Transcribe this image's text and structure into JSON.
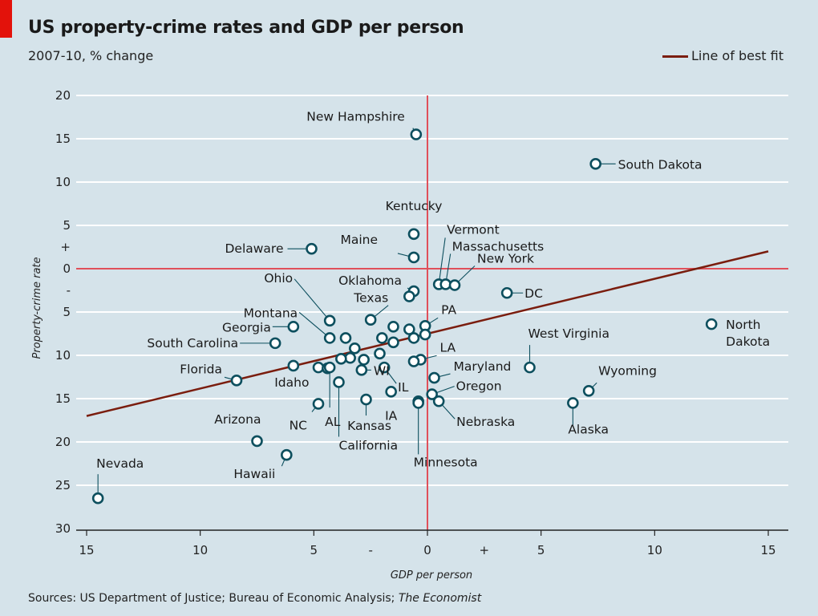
{
  "header": {
    "title": "US property-crime rates and GDP per person",
    "subtitle": "2007-10, % change"
  },
  "legend": {
    "label": "Line of best fit",
    "color": "#7a1d0e"
  },
  "footer": {
    "source_prefix": "Sources: US Department of Justice; Bureau of Economic Analysis; ",
    "source_italic": "The Economist"
  },
  "colors": {
    "background": "#d5e3ea",
    "accent_red": "#e3120b",
    "zero_line": "#e0505a",
    "point_stroke": "#0d4f5e",
    "fit_line": "#7a1d0e"
  },
  "chart_data": {
    "type": "scatter",
    "title": "US property-crime rates and GDP per person",
    "subtitle": "2007-10, % change",
    "xlabel": "GDP per person",
    "ylabel": "Property-crime rate",
    "xlim": [
      -15,
      15
    ],
    "ylim": [
      -20,
      30
    ],
    "y_inverted": true,
    "grid": "horizontal",
    "legend_position": "top-right",
    "x_ticks": [
      {
        "v": -15,
        "label": "15"
      },
      {
        "v": -10,
        "label": "10"
      },
      {
        "v": -5,
        "label": "5"
      },
      {
        "v": -2.5,
        "label": "-"
      },
      {
        "v": 0,
        "label": "0"
      },
      {
        "v": 2.5,
        "label": "+"
      },
      {
        "v": 5,
        "label": "5"
      },
      {
        "v": 10,
        "label": "10"
      },
      {
        "v": 15,
        "label": "15"
      }
    ],
    "y_ticks": [
      {
        "v": -20,
        "label": "20"
      },
      {
        "v": -15,
        "label": "15"
      },
      {
        "v": -10,
        "label": "10"
      },
      {
        "v": -5,
        "label": "5"
      },
      {
        "v": -2.5,
        "label": "+"
      },
      {
        "v": 0,
        "label": "0"
      },
      {
        "v": 2.5,
        "label": "-"
      },
      {
        "v": 5,
        "label": "5"
      },
      {
        "v": 10,
        "label": "10"
      },
      {
        "v": 15,
        "label": "15"
      },
      {
        "v": 20,
        "label": "20"
      },
      {
        "v": 25,
        "label": "25"
      },
      {
        "v": 30,
        "label": "30"
      }
    ],
    "best_fit": {
      "x": [
        -15,
        15
      ],
      "y": [
        17,
        -2
      ]
    },
    "points": [
      {
        "label": "New Hampshire",
        "x": -0.5,
        "y": -15.5
      },
      {
        "label": "South Dakota",
        "x": 7.4,
        "y": -12.1
      },
      {
        "label": "Kentucky",
        "x": -0.6,
        "y": -4.0
      },
      {
        "label": "Delaware",
        "x": -5.1,
        "y": -2.3
      },
      {
        "label": "Maine",
        "x": -0.6,
        "y": -1.3
      },
      {
        "label": "Vermont",
        "x": 0.5,
        "y": 1.8
      },
      {
        "label": "Massachusetts",
        "x": 0.8,
        "y": 1.8
      },
      {
        "label": "New York",
        "x": 1.2,
        "y": 1.9
      },
      {
        "label": "DC",
        "x": 3.5,
        "y": 2.8
      },
      {
        "label": "Oklahoma",
        "x": -0.6,
        "y": 2.6
      },
      {
        "label": "",
        "x": -0.8,
        "y": 3.2
      },
      {
        "label": "Ohio",
        "x": -4.3,
        "y": 6.0
      },
      {
        "label": "Texas",
        "x": -2.5,
        "y": 5.9
      },
      {
        "label": "",
        "x": -1.5,
        "y": 6.7
      },
      {
        "label": "PA",
        "x": -0.1,
        "y": 6.6
      },
      {
        "label": "",
        "x": -0.8,
        "y": 7.0
      },
      {
        "label": "North Dakota",
        "x": 12.5,
        "y": 6.4
      },
      {
        "label": "Georgia",
        "x": -5.9,
        "y": 6.7
      },
      {
        "label": "Montana",
        "x": -4.3,
        "y": 8.0
      },
      {
        "label": "",
        "x": -3.6,
        "y": 8.0
      },
      {
        "label": "South Carolina",
        "x": -6.7,
        "y": 8.6
      },
      {
        "label": "",
        "x": -2.0,
        "y": 8.0
      },
      {
        "label": "",
        "x": -1.5,
        "y": 8.5
      },
      {
        "label": "",
        "x": -0.6,
        "y": 8.0
      },
      {
        "label": "",
        "x": -0.1,
        "y": 7.6
      },
      {
        "label": "West Virginia",
        "x": 4.5,
        "y": 11.4
      },
      {
        "label": "",
        "x": -3.2,
        "y": 9.2
      },
      {
        "label": "",
        "x": -3.4,
        "y": 10.3
      },
      {
        "label": "",
        "x": -3.8,
        "y": 10.4
      },
      {
        "label": "",
        "x": -2.8,
        "y": 10.5
      },
      {
        "label": "",
        "x": -2.1,
        "y": 9.8
      },
      {
        "label": "LA",
        "x": -0.3,
        "y": 10.5
      },
      {
        "label": "",
        "x": -0.6,
        "y": 10.7
      },
      {
        "label": "Florida",
        "x": -8.4,
        "y": 12.9
      },
      {
        "label": "Idaho",
        "x": -5.9,
        "y": 11.2
      },
      {
        "label": "",
        "x": -4.8,
        "y": 11.4
      },
      {
        "label": "",
        "x": -4.4,
        "y": 11.5
      },
      {
        "label": "WI",
        "x": -2.9,
        "y": 11.7
      },
      {
        "label": "IL",
        "x": -1.9,
        "y": 11.4
      },
      {
        "label": "California",
        "x": -3.9,
        "y": 13.1
      },
      {
        "label": "Maryland",
        "x": 0.3,
        "y": 12.6
      },
      {
        "label": "Oregon",
        "x": 0.2,
        "y": 14.5
      },
      {
        "label": "Wyoming",
        "x": 7.1,
        "y": 14.1
      },
      {
        "label": "Alaska",
        "x": 6.4,
        "y": 15.5
      },
      {
        "label": "NC",
        "x": -4.8,
        "y": 15.6
      },
      {
        "label": "AL",
        "x": -4.3,
        "y": 11.4
      },
      {
        "label": "Kansas",
        "x": -2.7,
        "y": 15.1
      },
      {
        "label": "IA",
        "x": -1.6,
        "y": 14.2
      },
      {
        "label": "",
        "x": -0.4,
        "y": 15.3
      },
      {
        "label": "Nebraska",
        "x": 0.5,
        "y": 15.3
      },
      {
        "label": "Minnesota",
        "x": -0.4,
        "y": 15.5
      },
      {
        "label": "Arizona",
        "x": -7.5,
        "y": 19.9
      },
      {
        "label": "Hawaii",
        "x": -6.2,
        "y": 21.5
      },
      {
        "label": "Nevada",
        "x": -14.5,
        "y": 26.5
      }
    ]
  }
}
